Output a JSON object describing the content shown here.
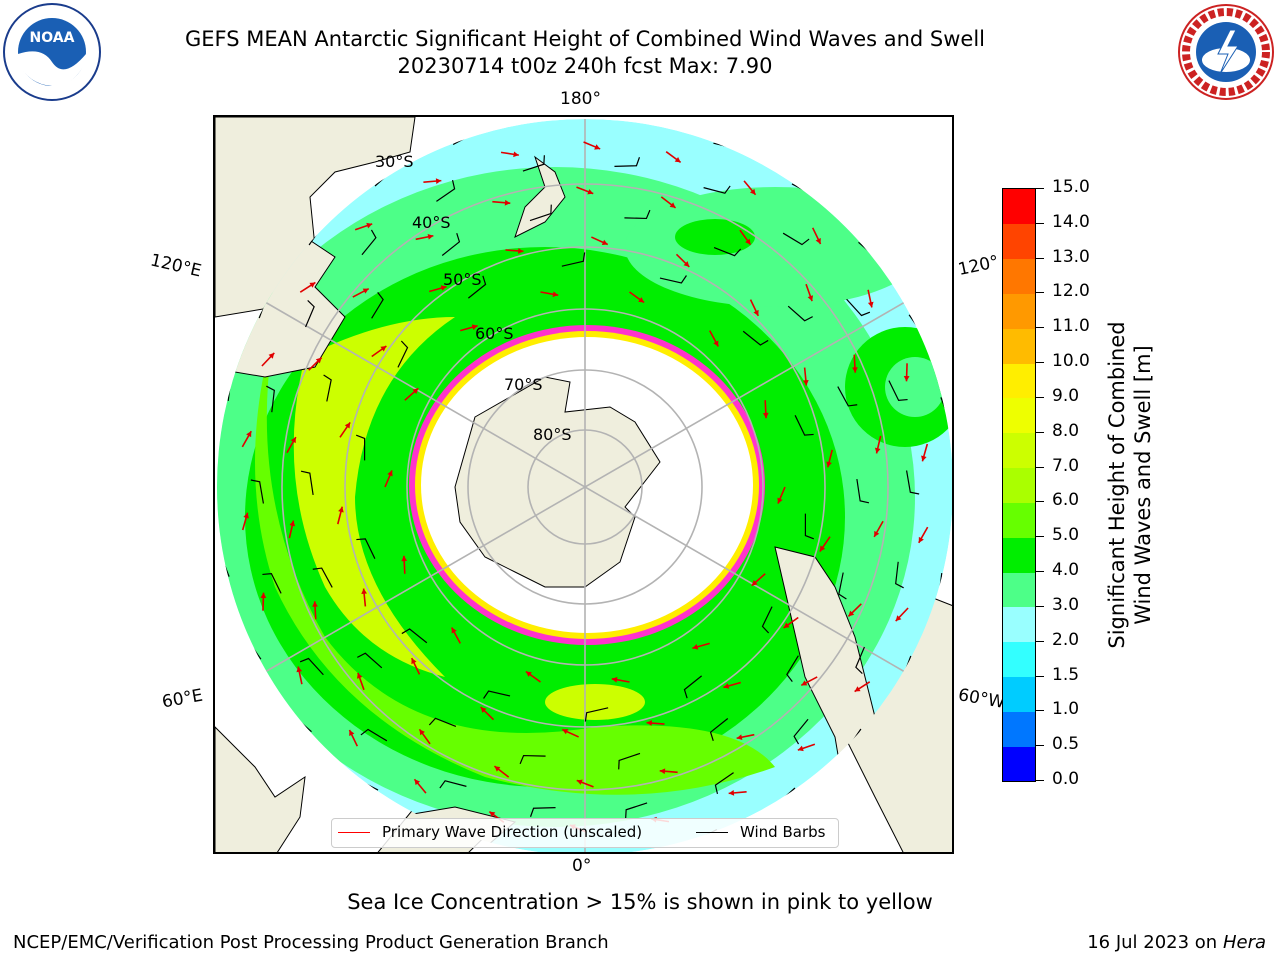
{
  "header": {
    "title_line1": "GEFS MEAN Antarctic Significant Height of Combined Wind Waves and Swell",
    "title_line2": "20230714 t00z 240h fcst   Max: 7.90"
  },
  "logos": {
    "left": "noaa-logo",
    "right": "national-weather-service-logo"
  },
  "map": {
    "projection": "south-polar-stereographic",
    "lon_labels": {
      "top": "180°",
      "bottom": "0°",
      "upper_left": "120°E",
      "upper_right": "120°",
      "lower_left": "60°E",
      "lower_right": "60°W"
    },
    "lat_labels": [
      "30°S",
      "40°S",
      "50°S",
      "60°S",
      "70°S",
      "80°S"
    ],
    "colors": {
      "land": "#efeedd",
      "ice_sheet": "#ffffff",
      "sea_ice_edge": "#ff33cc",
      "arrow": "#ff0000",
      "barb": "#000000",
      "graticule": "#b3b3b3"
    }
  },
  "legend": {
    "wave_direction_label": "Primary Wave Direction (unscaled)",
    "wind_barbs_label": "Wind Barbs"
  },
  "colorbar": {
    "title_line1": "Significant Height of Combined",
    "title_line2": "Wind Waves and Swell [m]",
    "levels": [
      "0.0",
      "0.5",
      "1.0",
      "1.5",
      "2.0",
      "3.0",
      "4.0",
      "5.0",
      "6.0",
      "7.0",
      "8.0",
      "9.0",
      "10.0",
      "11.0",
      "12.0",
      "13.0",
      "14.0",
      "15.0"
    ],
    "colors": [
      "#0000ff",
      "#0077ff",
      "#00ccff",
      "#33ffff",
      "#99ffff",
      "#4dff88",
      "#00ee00",
      "#66ff00",
      "#aaff00",
      "#ccff00",
      "#eeff00",
      "#ffee00",
      "#ffbb00",
      "#ff9900",
      "#ff7700",
      "#ff4400",
      "#ff0000"
    ]
  },
  "note": "Sea Ice Concentration > 15% is shown in pink to yellow",
  "footer": {
    "left": "NCEP/EMC/Verification Post Processing Product Generation Branch",
    "date": "16 Jul 2023 on ",
    "machine": "Hera"
  }
}
